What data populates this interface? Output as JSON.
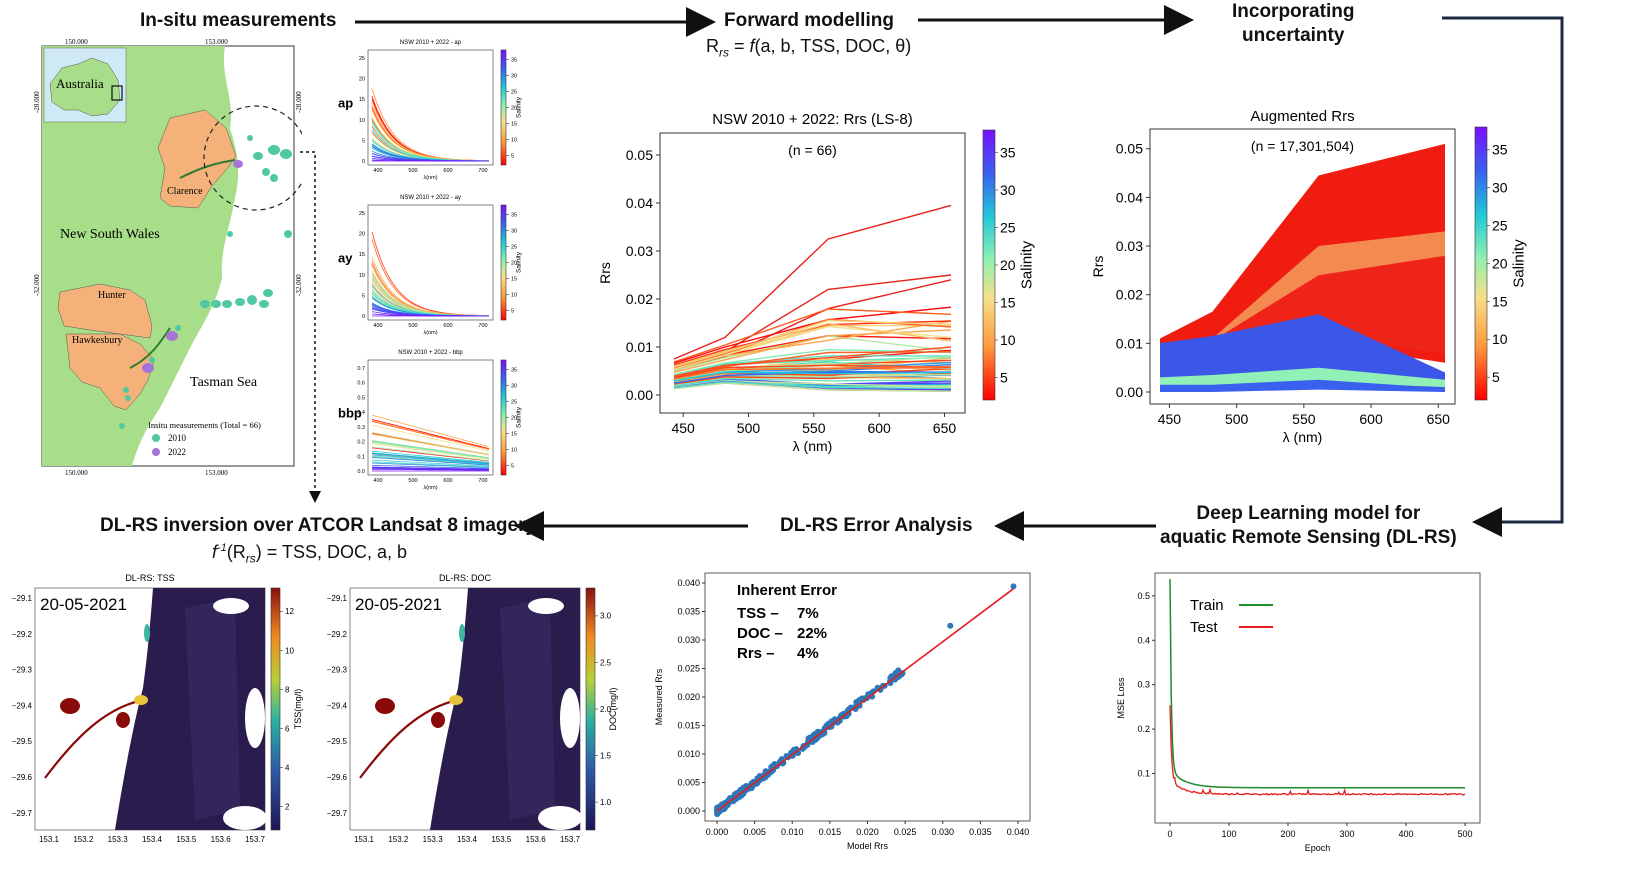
{
  "headers": {
    "insitu": "In-situ measurements",
    "forward": "Forward modelling",
    "forward_formula": "Rrs = f(a, b, TSS, DOC, θ)",
    "uncertainty_line1": "Incorporating",
    "uncertainty_line2": "uncertainty",
    "dlrs_line1": "Deep Learning model for",
    "dlrs_line2": "aquatic Remote Sensing (DL-RS)",
    "error": "DL-RS Error Analysis",
    "inversion": "DL-RS inversion over ATCOR Landsat 8 imagery",
    "inversion_formula": "f-1(Rrs) = TSS, DOC, a, b"
  },
  "map": {
    "lon_ticks": [
      "150.000",
      "153.000"
    ],
    "lat_ticks": [
      "-28.000",
      "-32.000"
    ],
    "inset_label": "Australia",
    "regions": [
      "Clarence",
      "Hunter",
      "Hawkesbury"
    ],
    "state_label": "New South Wales",
    "sea_label": "Tasman Sea",
    "legend_title": "Insitu measurements (Total = 66)",
    "legend_items": [
      {
        "label": "2010",
        "color": "#4fc9a4"
      },
      {
        "label": "2022",
        "color": "#a873d6"
      }
    ]
  },
  "small_plots": [
    {
      "title": "NSW 2010 + 2022 - ap",
      "ylabel": "ap",
      "yticks": [
        "0",
        "5",
        "10",
        "15",
        "20",
        "25"
      ],
      "xticks": [
        "400",
        "500",
        "600",
        "700"
      ],
      "xlabel": "λ(nm)",
      "cbar_ticks": [
        "5",
        "10",
        "15",
        "20",
        "25",
        "30",
        "35"
      ],
      "cbar_label": "Salinity"
    },
    {
      "title": "NSW 2010 + 2022 - ay",
      "ylabel": "ay",
      "yticks": [
        "0",
        "5",
        "10",
        "15",
        "20",
        "25"
      ],
      "xticks": [
        "400",
        "500",
        "600",
        "700"
      ],
      "xlabel": "λ(nm)",
      "cbar_ticks": [
        "5",
        "10",
        "15",
        "20",
        "25",
        "30",
        "35"
      ],
      "cbar_label": "Salinity"
    },
    {
      "title": "NSW 2010 + 2022 - bbp",
      "ylabel": "bbp",
      "yticks": [
        "0.0",
        "0.1",
        "0.2",
        "0.3",
        "0.4",
        "0.5",
        "0.6",
        "0.7"
      ],
      "xticks": [
        "400",
        "500",
        "600",
        "700"
      ],
      "xlabel": "λ(nm)",
      "cbar_ticks": [
        "5",
        "10",
        "15",
        "20",
        "25",
        "30",
        "35"
      ],
      "cbar_label": "Salinity"
    }
  ],
  "rrs_plot": {
    "title": "NSW 2010 + 2022: Rrs (LS-8)",
    "n_label": "(n = 66)",
    "ylabel": "Rrs",
    "xlabel": "λ (nm)",
    "xticks": [
      "450",
      "500",
      "550",
      "600",
      "650"
    ],
    "yticks": [
      "0.00",
      "0.01",
      "0.02",
      "0.03",
      "0.04",
      "0.05"
    ],
    "cbar_label": "Salinity",
    "cbar_ticks": [
      "5",
      "10",
      "15",
      "20",
      "25",
      "30",
      "35"
    ]
  },
  "aug_plot": {
    "title": "Augmented Rrs",
    "n_label": "(n = 17,301,504)",
    "ylabel": "Rrs",
    "xlabel": "λ (nm)",
    "xticks": [
      "450",
      "500",
      "550",
      "600",
      "650"
    ],
    "yticks": [
      "0.00",
      "0.01",
      "0.02",
      "0.03",
      "0.04",
      "0.05"
    ],
    "cbar_label": "Salinity",
    "cbar_ticks": [
      "5",
      "10",
      "15",
      "20",
      "25",
      "30",
      "35"
    ]
  },
  "scatter": {
    "ylabel": "Measured Rrs",
    "xlabel": "Model Rrs",
    "xticks": [
      "0.000",
      "0.005",
      "0.010",
      "0.015",
      "0.020",
      "0.025",
      "0.030",
      "0.035",
      "0.040"
    ],
    "yticks": [
      "0.000",
      "0.005",
      "0.010",
      "0.015",
      "0.020",
      "0.025",
      "0.030",
      "0.035",
      "0.040"
    ],
    "error_title": "Inherent Error",
    "errors": [
      {
        "name": "TSS –",
        "value": "7%"
      },
      {
        "name": "DOC –",
        "value": "22%"
      },
      {
        "name": "Rrs –",
        "value": "4%"
      }
    ]
  },
  "loss": {
    "ylabel": "MSE Loss",
    "xlabel": "Epoch",
    "xticks": [
      "0",
      "100",
      "200",
      "300",
      "400",
      "500"
    ],
    "yticks": [
      "0.1",
      "0.2",
      "0.3",
      "0.4",
      "0.5"
    ],
    "legend": [
      {
        "label": "Train",
        "color": "#1e8a2a"
      },
      {
        "label": "Test",
        "color": "#e51c1c"
      }
    ]
  },
  "maps_out": [
    {
      "title": "DL-RS: TSS",
      "date": "20-05-2021",
      "cbar_label": "TSS(mg/l)",
      "cbar_ticks": [
        "2",
        "4",
        "6",
        "8",
        "10",
        "12"
      ],
      "yticks": [
        "-29.1",
        "-29.2",
        "-29.3",
        "-29.4",
        "-29.5",
        "-29.6",
        "-29.7"
      ],
      "xticks": [
        "153.1",
        "153.2",
        "153.3",
        "153.4",
        "153.5",
        "153.6",
        "153.7"
      ]
    },
    {
      "title": "DL-RS: DOC",
      "date": "20-05-2021",
      "cbar_label": "DOC(mg/l)",
      "cbar_ticks": [
        "1.0",
        "1.5",
        "2.0",
        "2.5",
        "3.0"
      ],
      "yticks": [
        "-29.1",
        "-29.2",
        "-29.3",
        "-29.4",
        "-29.5",
        "-29.6",
        "-29.7"
      ],
      "xticks": [
        "153.1",
        "153.2",
        "153.3",
        "153.4",
        "153.5",
        "153.6",
        "153.7"
      ]
    }
  ]
}
